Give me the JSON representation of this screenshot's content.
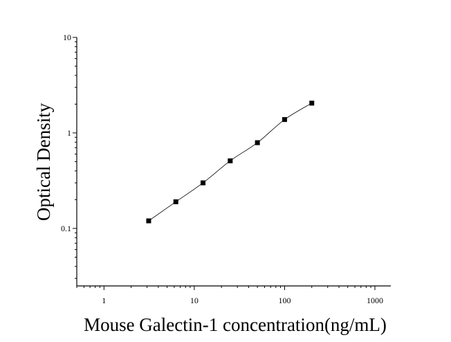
{
  "chart_data": {
    "type": "scatter",
    "xlabel": "Mouse Galectin-1 concentration(ng/mL)",
    "ylabel": "Optical Density",
    "xscale": "log",
    "yscale": "log",
    "xlim": [
      0.5,
      1500
    ],
    "ylim": [
      0.025,
      10
    ],
    "x_ticks": [
      1,
      10,
      100,
      1000
    ],
    "x_tick_labels": [
      "1",
      "10",
      "100",
      "1000"
    ],
    "y_ticks": [
      0.1,
      1,
      10
    ],
    "y_tick_labels": [
      "0.1",
      "1",
      "10"
    ],
    "grid": false,
    "legend": "none",
    "marker": "square",
    "fit_line": true,
    "series": [
      {
        "points": [
          {
            "x": 3.125,
            "y": 0.12
          },
          {
            "x": 6.25,
            "y": 0.19
          },
          {
            "x": 12.5,
            "y": 0.3
          },
          {
            "x": 25,
            "y": 0.51
          },
          {
            "x": 50,
            "y": 0.79
          },
          {
            "x": 100,
            "y": 1.38
          },
          {
            "x": 200,
            "y": 2.05
          }
        ]
      }
    ],
    "color": "#000000"
  }
}
